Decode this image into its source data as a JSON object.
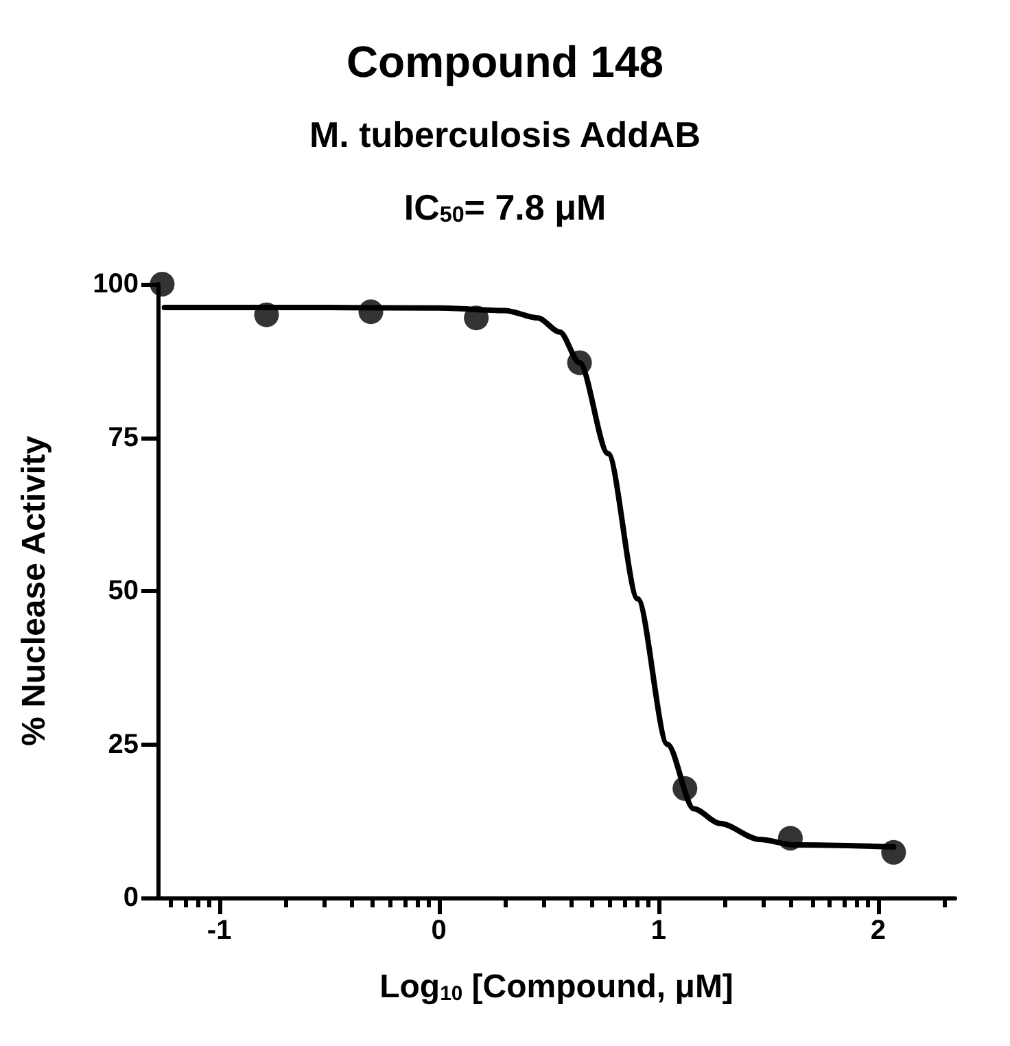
{
  "chart_data": {
    "type": "scatter",
    "title": "Compound 148",
    "subtitle": "M. tuberculosis AddAB",
    "annotations": [
      "IC$_{50}$= 7.8 μM"
    ],
    "xlabel": "Log$_{10}$ [Compound, μM]",
    "ylabel": "% Nuclease Activity",
    "xlim": [
      -1.28,
      2.35
    ],
    "ylim": [
      0,
      100
    ],
    "yticks": [
      0,
      25,
      50,
      75,
      100
    ],
    "xticks": [
      {
        "value": -1.222,
        "label": null
      },
      {
        "value": -1.155,
        "label": null
      },
      {
        "value": -1.097,
        "label": null
      },
      {
        "value": -1.046,
        "label": null
      },
      -1,
      {
        "value": -0.699,
        "label": null
      },
      {
        "value": -0.523,
        "label": null
      },
      {
        "value": -0.398,
        "label": null
      },
      {
        "value": -0.301,
        "label": null
      },
      {
        "value": -0.222,
        "label": null
      },
      {
        "value": -0.155,
        "label": null
      },
      {
        "value": -0.097,
        "label": null
      },
      {
        "value": -0.046,
        "label": null
      },
      0,
      {
        "value": 0.301,
        "label": null
      },
      {
        "value": 0.477,
        "label": null
      },
      {
        "value": 0.602,
        "label": null
      },
      {
        "value": 0.699,
        "label": null
      },
      {
        "value": 0.778,
        "label": null
      },
      {
        "value": 0.845,
        "label": null
      },
      {
        "value": 0.903,
        "label": null
      },
      {
        "value": 0.954,
        "label": null
      },
      1,
      {
        "value": 1.301,
        "label": null
      },
      {
        "value": 1.477,
        "label": null
      },
      {
        "value": 1.602,
        "label": null
      },
      {
        "value": 1.699,
        "label": null
      },
      {
        "value": 1.778,
        "label": null
      },
      {
        "value": 1.845,
        "label": null
      },
      {
        "value": 1.903,
        "label": null
      },
      {
        "value": 1.954,
        "label": null
      },
      2,
      {
        "value": 2.301,
        "label": null
      }
    ],
    "grid": false,
    "marker": "circle",
    "series": [
      {
        "type": "scatter",
        "color": "#000000",
        "x": [
          -1.26,
          -0.785,
          -0.31,
          0.17,
          0.64,
          1.12,
          1.6,
          2.07
        ],
        "values": [
          100,
          95,
          95.5,
          94.5,
          87.2,
          17.8,
          9.7,
          7.4
        ]
      },
      {
        "type": "line",
        "color": "#000000",
        "marker": "none",
        "line_style": "solid",
        "x": [
          -1.25,
          -0.5,
          0,
          0.3,
          0.45,
          0.55,
          0.64,
          0.77,
          0.905,
          1.04,
          1.16,
          1.28,
          1.46,
          1.62,
          2.07
        ],
        "values": [
          96.2,
          96.2,
          96.1,
          95.7,
          94.5,
          92.2,
          87.2,
          72.4,
          48.7,
          25,
          14.5,
          12.1,
          9.5,
          8.6,
          8.3
        ]
      }
    ]
  }
}
